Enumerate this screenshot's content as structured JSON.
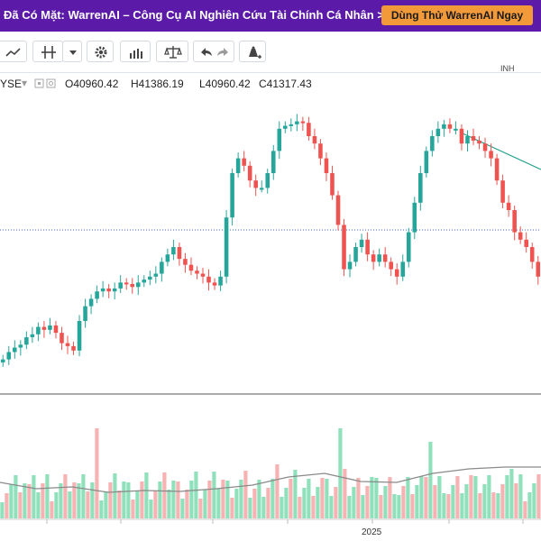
{
  "banner": {
    "text": "Đã Có Mặt: WarrenAI – Công Cụ AI Nghiên Cứu Tài Chính Cá Nhân >>>",
    "cta_label": "Dùng Thử WarrenAI Ngay"
  },
  "toolbar": {
    "top_right_label": "INH",
    "buttons": [
      {
        "icon": "line-chart-icon"
      },
      {
        "icon": "indicator-icon"
      },
      {
        "icon": "dropdown-icon"
      },
      {
        "icon": "gear-icon"
      },
      {
        "icon": "bar-chart-icon"
      },
      {
        "icon": "balance-scale-icon"
      },
      {
        "icon": "undo-icon"
      },
      {
        "icon": "redo-icon"
      },
      {
        "icon": "alert-bell-icon"
      }
    ]
  },
  "legend": {
    "symbol": "YSE",
    "open": "O40960.42",
    "high": "H41386.19",
    "low": "L40960.42",
    "close": "C41317.43"
  },
  "colors": {
    "up": "#26a69a",
    "down": "#ef5350",
    "vol_up": "#8fe0bb",
    "vol_down": "#f7b3b3",
    "ma_line": "#8a8a8a",
    "trend_line": "#1e9f8b",
    "ref_line": "#3d6bd6",
    "banner_bg": "#5b1aa8",
    "cta_bg": "#f29a3a"
  },
  "x_axis": {
    "label_2025": "2025"
  },
  "chart_data": {
    "type": "candlestick",
    "title": "",
    "price_ohlc_last": [
      40960.42,
      41386.19,
      40960.42,
      41317.43
    ],
    "candles_close": [
      40240,
      40290,
      40320,
      40340,
      40390,
      40410,
      40460,
      40440,
      40470,
      40420,
      40350,
      40330,
      40300,
      40500,
      40600,
      40650,
      40700,
      40720,
      40700,
      40720,
      40760,
      40750,
      40730,
      40760,
      40780,
      40800,
      40820,
      40900,
      40950,
      41000,
      40920,
      40880,
      40840,
      40820,
      40800,
      40760,
      40740,
      40800,
      41200,
      41500,
      41600,
      41550,
      41450,
      41400,
      41400,
      41500,
      41650,
      41800,
      41820,
      41830,
      41850,
      41840,
      41750,
      41700,
      41600,
      41500,
      41350,
      41150,
      40850,
      40900,
      41000,
      41050,
      40950,
      40900,
      40950,
      40900,
      40850,
      40800,
      40900,
      41100,
      41300,
      41500,
      41650,
      41750,
      41800,
      41830,
      41800,
      41800,
      41700,
      41750,
      41720,
      41700,
      41650,
      41600,
      41450,
      41300,
      41250,
      41100,
      41050,
      41000,
      40900,
      40800
    ],
    "reference_line_approx": 40410,
    "trend_line": "down from peak"
  }
}
